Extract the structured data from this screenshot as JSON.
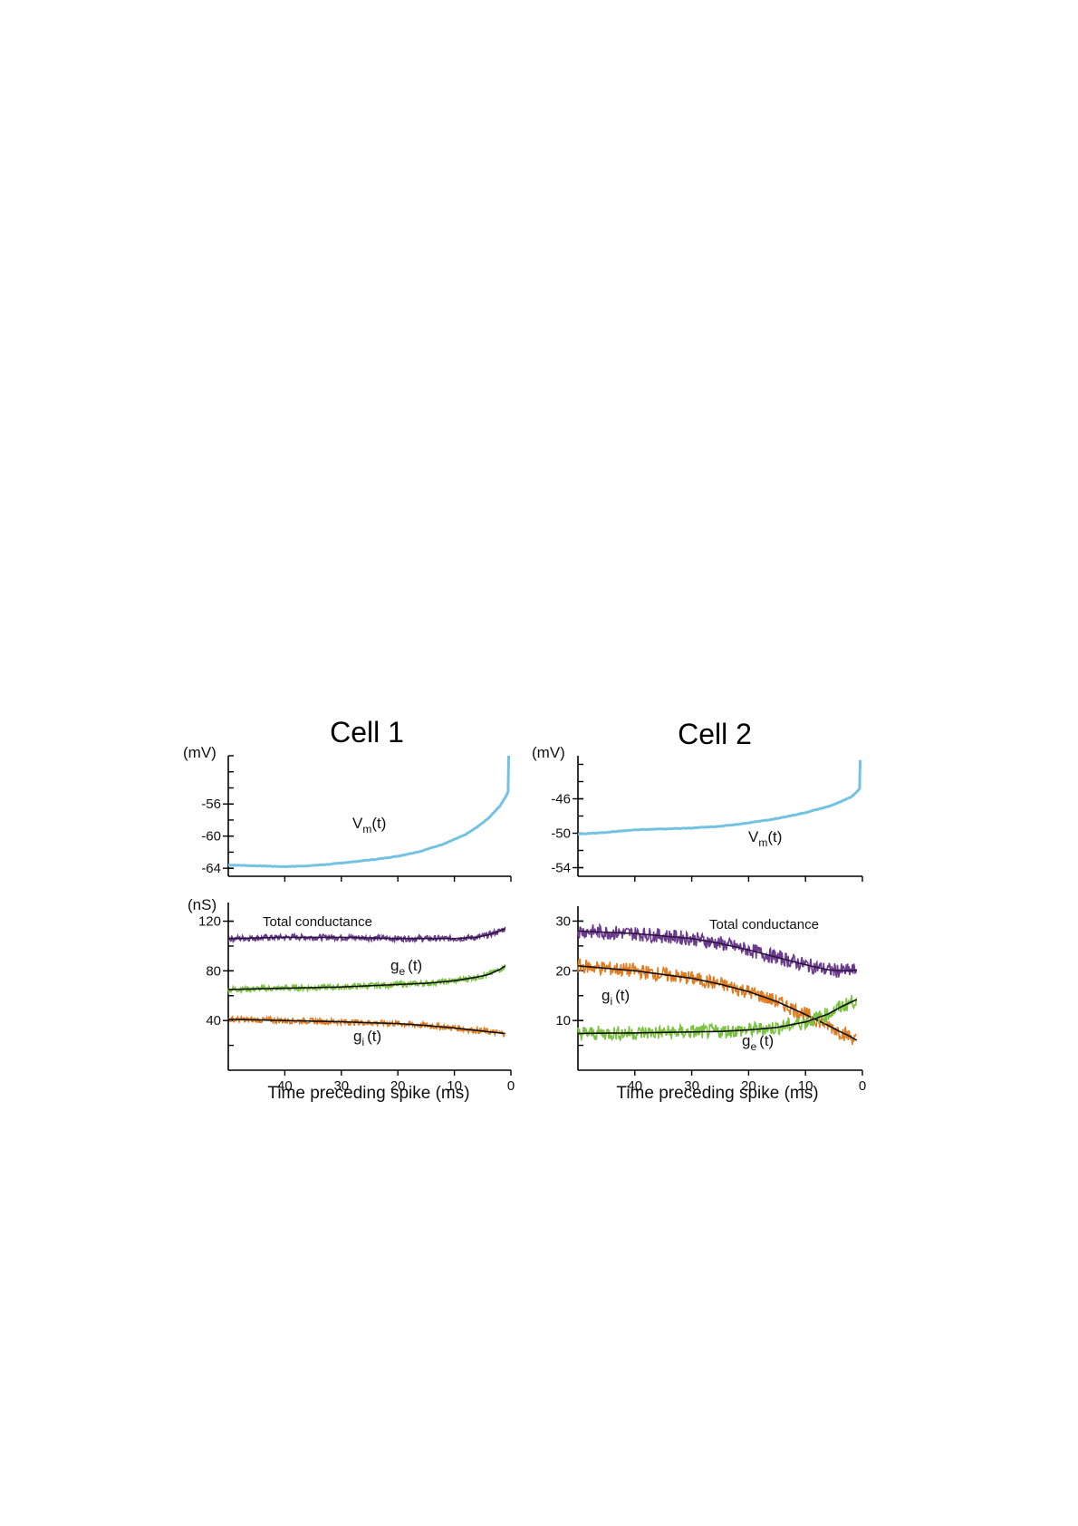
{
  "chart_data": [
    {
      "panel": "Cell 1",
      "title": "Cell 1",
      "subplots": [
        {
          "type": "line",
          "unit": "(mV)",
          "ylim": [
            -65,
            -50
          ],
          "yticks": [
            -64,
            -60,
            -56
          ],
          "ytick_labels": [
            "-64",
            "-60",
            "-56"
          ],
          "xlim": [
            50,
            0
          ],
          "x_reversed": true,
          "series": [
            {
              "name": "V",
              "sub": "m",
              "suffix": "(t)",
              "color": "#74c2e1",
              "x": [
                50,
                45,
                40,
                36,
                32,
                28,
                24,
                20,
                16,
                12,
                8,
                6,
                4,
                2,
                1,
                0.5,
                0.4
              ],
              "y": [
                -63.6,
                -63.7,
                -63.8,
                -63.7,
                -63.5,
                -63.2,
                -62.9,
                -62.5,
                -61.9,
                -61.0,
                -59.8,
                -58.9,
                -57.8,
                -56.3,
                -55.2,
                -54.5,
                -50
              ]
            }
          ]
        },
        {
          "type": "line",
          "unit": "(nS)",
          "ylim": [
            0,
            135
          ],
          "yticks": [
            40,
            80,
            120
          ],
          "ytick_labels": [
            "40",
            "80",
            "120"
          ],
          "xlim": [
            50,
            0
          ],
          "x_reversed": true,
          "xticks": [
            40,
            30,
            20,
            10,
            0
          ],
          "xtick_labels": [
            "40",
            "30",
            "20",
            "10",
            "0"
          ],
          "xlabel": "Time preceding spike (ms)",
          "series": [
            {
              "name": "Total conductance",
              "color": "#6b3a8c",
              "fit_color": "#2a1640",
              "x": [
                50,
                40,
                30,
                20,
                15,
                10,
                6,
                4,
                2,
                1
              ],
              "y": [
                106,
                107,
                107,
                106,
                106,
                106,
                107,
                109,
                112,
                114
              ]
            },
            {
              "name": "g",
              "sub": "e",
              "suffix": "(t)",
              "color": "#7cc242",
              "fit_color": "#111111",
              "x": [
                50,
                40,
                30,
                20,
                15,
                10,
                6,
                4,
                2,
                1
              ],
              "y": [
                65,
                66,
                67,
                69,
                70,
                72,
                75,
                77,
                81,
                84
              ]
            },
            {
              "name": "g",
              "sub": "i",
              "suffix": "(t)",
              "color": "#e07b20",
              "fit_color": "#111111",
              "x": [
                50,
                40,
                30,
                20,
                15,
                10,
                6,
                4,
                2,
                1
              ],
              "y": [
                41,
                40,
                39,
                37.5,
                36,
                34,
                32,
                31,
                30,
                29.5
              ]
            }
          ]
        }
      ]
    },
    {
      "panel": "Cell 2",
      "title": "Cell 2",
      "subplots": [
        {
          "type": "line",
          "unit": "(mV)",
          "ylim": [
            -55,
            -41
          ],
          "yticks": [
            -54,
            -50,
            -46
          ],
          "ytick_labels": [
            "-54",
            "-50",
            "-46"
          ],
          "xlim": [
            50,
            0
          ],
          "x_reversed": true,
          "series": [
            {
              "name": "V",
              "sub": "m",
              "suffix": "(t)",
              "color": "#74c2e1",
              "x": [
                50,
                45,
                40,
                35,
                30,
                25,
                20,
                15,
                10,
                6,
                4,
                2,
                1,
                0.5,
                0.4
              ],
              "y": [
                -50.1,
                -49.9,
                -49.6,
                -49.5,
                -49.4,
                -49.2,
                -48.8,
                -48.3,
                -47.6,
                -46.9,
                -46.4,
                -45.8,
                -45.2,
                -44.8,
                -41.5
              ]
            }
          ]
        },
        {
          "type": "line",
          "ylim": [
            0,
            33
          ],
          "yticks": [
            10,
            20,
            30
          ],
          "ytick_labels": [
            "10",
            "20",
            "30"
          ],
          "xlim": [
            50,
            0
          ],
          "x_reversed": true,
          "xticks": [
            40,
            30,
            20,
            10,
            0
          ],
          "xtick_labels": [
            "40",
            "30",
            "20",
            "10",
            "0"
          ],
          "xlabel": "Time preceding spike (ms)",
          "series": [
            {
              "name": "Total conductance",
              "color": "#6b3a8c",
              "fit_color": "#2a1640",
              "x": [
                50,
                40,
                30,
                25,
                20,
                15,
                10,
                6,
                4,
                2,
                1
              ],
              "y": [
                28,
                27.5,
                26.5,
                25.5,
                24.2,
                22.7,
                21.2,
                20.2,
                20.0,
                20.0,
                20.2
              ]
            },
            {
              "name": "g",
              "sub": "i",
              "suffix": "(t)",
              "color": "#e07b20",
              "fit_color": "#111111",
              "x": [
                50,
                40,
                30,
                25,
                20,
                15,
                10,
                6,
                4,
                2,
                1
              ],
              "y": [
                21,
                20,
                18.5,
                17.3,
                15.8,
                13.8,
                11.2,
                9.0,
                7.8,
                6.7,
                6.0
              ]
            },
            {
              "name": "g",
              "sub": "e",
              "suffix": "(t)",
              "color": "#7cc242",
              "fit_color": "#111111",
              "x": [
                50,
                40,
                30,
                25,
                20,
                15,
                10,
                6,
                4,
                2,
                1
              ],
              "y": [
                7.4,
                7.5,
                7.7,
                7.8,
                8.1,
                8.6,
                9.7,
                11.3,
                12.6,
                13.7,
                14.2
              ]
            }
          ]
        }
      ]
    }
  ]
}
